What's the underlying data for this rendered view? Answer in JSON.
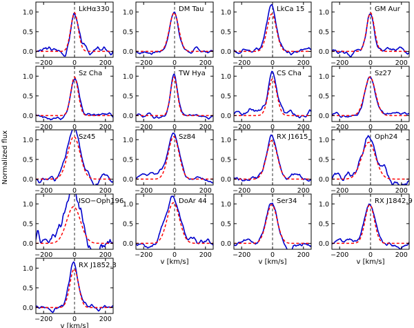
{
  "chart_data": {
    "type": "line",
    "ylabel": "Normalized flux",
    "xlabel": "v [km/s]",
    "xlim": [
      -250,
      250
    ],
    "ylim": [
      -0.15,
      1.25
    ],
    "xticks": [
      -200,
      0,
      200
    ],
    "yticks": [
      0.0,
      0.5,
      1.0
    ],
    "ytick_labels": [
      "0.0",
      "0.5",
      "1.0"
    ],
    "series_legend": {
      "observed": "observed profile (blue solid)",
      "fit": "Gaussian fit (red dashed)"
    },
    "panels": [
      {
        "name": "LkHα330",
        "ymax": 1.25,
        "center": 0,
        "width": 24,
        "amp": 1.0,
        "wing": 0,
        "noise": 0.1,
        "seed": 3,
        "bottom_labels": true
      },
      {
        "name": "DM Tau",
        "ymax": 1.25,
        "center": -3,
        "width": 30,
        "amp": 1.0,
        "wing": 0,
        "noise": 0.06,
        "seed": 7,
        "bottom_labels": true
      },
      {
        "name": "LkCa 15",
        "ymax": 1.25,
        "center": -5,
        "width": 30,
        "amp": 0.97,
        "wing": 0.1,
        "noise": 0.08,
        "seed": 11,
        "bottom_labels": true
      },
      {
        "name": "GM Aur",
        "ymax": 1.25,
        "center": 0,
        "width": 25,
        "amp": 1.0,
        "wing": 0,
        "noise": 0.08,
        "seed": 13,
        "bottom_labels": true
      },
      {
        "name": "Sz Cha",
        "ymax": 1.25,
        "center": 0,
        "width": 24,
        "amp": 1.0,
        "wing": 0,
        "noise": 0.07,
        "seed": 17,
        "bottom_labels": true
      },
      {
        "name": "TW Hya",
        "ymax": 1.25,
        "center": -4,
        "width": 22,
        "amp": 1.0,
        "wing": 0,
        "noise": 0.05,
        "seed": 19,
        "bottom_labels": true
      },
      {
        "name": "CS Cha",
        "ymax": 1.25,
        "center": 0,
        "width": 28,
        "amp": 0.95,
        "wing": 0.12,
        "noise": 0.09,
        "seed": 23,
        "bottom_labels": true
      },
      {
        "name": "Sz27",
        "ymax": 1.25,
        "center": -3,
        "width": 35,
        "amp": 1.0,
        "wing": 0,
        "noise": 0.05,
        "seed": 29,
        "bottom_labels": true
      },
      {
        "name": "Sz45",
        "ymax": 1.25,
        "center": -4,
        "width": 40,
        "amp": 1.1,
        "wing": 0.1,
        "noise": 0.09,
        "seed": 31,
        "bottom_labels": true
      },
      {
        "name": "Sz84",
        "ymax": 1.25,
        "center": -6,
        "width": 35,
        "amp": 1.1,
        "wing": 0.1,
        "noise": 0.06,
        "seed": 37,
        "bottom_labels": true
      },
      {
        "name": "RX J1615",
        "ymax": 1.25,
        "center": -4,
        "width": 35,
        "amp": 1.0,
        "wing": 0.05,
        "noise": 0.09,
        "seed": 41,
        "bottom_labels": true
      },
      {
        "name": "Oph24",
        "ymax": 1.25,
        "center": -12,
        "width": 45,
        "amp": 0.95,
        "wing": 0.15,
        "noise": 0.12,
        "seed": 43,
        "bottom_labels": true
      },
      {
        "name": "ISO−Oph196",
        "ymax": 1.25,
        "center": -6,
        "width": 45,
        "amp": 0.95,
        "wing": 0.3,
        "noise": 0.25,
        "seed": 47,
        "bottom_labels": true
      },
      {
        "name": "DoAr 44",
        "ymax": 1.25,
        "center": -8,
        "width": 40,
        "amp": 1.05,
        "wing": 0.2,
        "noise": 0.09,
        "seed": 53,
        "bottom_labels": true
      },
      {
        "name": "Ser34",
        "ymax": 1.25,
        "center": -5,
        "width": 35,
        "amp": 1.0,
        "wing": 0.05,
        "noise": 0.09,
        "seed": 59,
        "bottom_labels": true
      },
      {
        "name": "RX J1842.9",
        "ymax": 1.25,
        "center": -5,
        "width": 30,
        "amp": 1.0,
        "wing": 0,
        "noise": 0.08,
        "seed": 61,
        "bottom_labels": true
      },
      {
        "name": "RX J1852.3",
        "ymax": 1.25,
        "center": -2,
        "width": 28,
        "amp": 1.0,
        "wing": 0.1,
        "noise": 0.08,
        "seed": 67,
        "bottom_labels": true
      }
    ]
  }
}
